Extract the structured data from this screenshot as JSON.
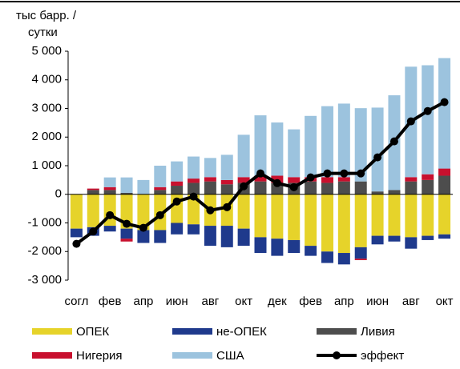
{
  "chart_data": {
    "type": "stacked_bar_line",
    "y_label": [
      "тыс барр. /",
      "сутки"
    ],
    "categories": [
      "согл",
      null,
      "фев",
      null,
      "апр",
      null,
      "июн",
      null,
      "авг",
      null,
      "окт",
      null,
      "дек",
      null,
      "фев",
      null,
      "апр",
      null,
      "июн",
      null,
      "авг",
      null,
      "окт"
    ],
    "ylim": [
      -3000,
      5000
    ],
    "yticks": [
      {
        "value": -3000,
        "label": "-3 000"
      },
      {
        "value": -2000,
        "label": "-2 000"
      },
      {
        "value": -1000,
        "label": "-1 000"
      },
      0,
      {
        "value": 1000,
        "label": "1 000"
      },
      {
        "value": 2000,
        "label": "2 000"
      },
      {
        "value": 3000,
        "label": "3 000"
      },
      {
        "value": 4000,
        "label": "4 000"
      },
      {
        "value": 5000,
        "label": "5 000"
      }
    ],
    "series": [
      {
        "name": "ОПЕК",
        "color": "#e6d32a",
        "values": [
          -1200,
          -1150,
          -1100,
          -1200,
          -1250,
          -1250,
          -1000,
          -1050,
          -1100,
          -1100,
          -1200,
          -1500,
          -1550,
          -1600,
          -1800,
          -2000,
          -2050,
          -1850,
          -1450,
          -1450,
          -1500,
          -1450,
          -1400
        ]
      },
      {
        "name": "не-ОПЕК",
        "color": "#1f3a8c",
        "values": [
          -300,
          -300,
          -200,
          -350,
          -450,
          -450,
          -400,
          -350,
          -700,
          -750,
          -600,
          -550,
          -600,
          -450,
          -350,
          -400,
          -400,
          -400,
          -300,
          -200,
          -400,
          -150,
          -150
        ]
      },
      {
        "name": "Ливия",
        "color": "#4d4d4d",
        "values": [
          0,
          150,
          150,
          50,
          0,
          150,
          300,
          400,
          450,
          350,
          400,
          450,
          400,
          400,
          450,
          400,
          450,
          450,
          100,
          150,
          450,
          500,
          650
        ]
      },
      {
        "name": "Нигерия",
        "color": "#c8102e",
        "values": [
          0,
          50,
          100,
          -100,
          0,
          100,
          150,
          150,
          150,
          150,
          200,
          200,
          250,
          200,
          150,
          200,
          150,
          -50,
          0,
          0,
          150,
          200,
          250
        ]
      },
      {
        "name": "США",
        "color": "#9cc3de",
        "values": [
          0,
          0,
          340,
          540,
          500,
          750,
          700,
          770,
          670,
          880,
          1480,
          2110,
          1860,
          1670,
          2140,
          2480,
          2570,
          2560,
          2930,
          3310,
          3860,
          3810,
          3860
        ]
      },
      {
        "name": "эффект",
        "color": "#000000",
        "type": "line",
        "values": [
          -1730,
          -1300,
          -730,
          -1030,
          -1170,
          -730,
          -250,
          -80,
          -560,
          -450,
          280,
          730,
          390,
          250,
          590,
          730,
          730,
          730,
          1290,
          1850,
          2550,
          2910,
          3220
        ]
      }
    ]
  }
}
